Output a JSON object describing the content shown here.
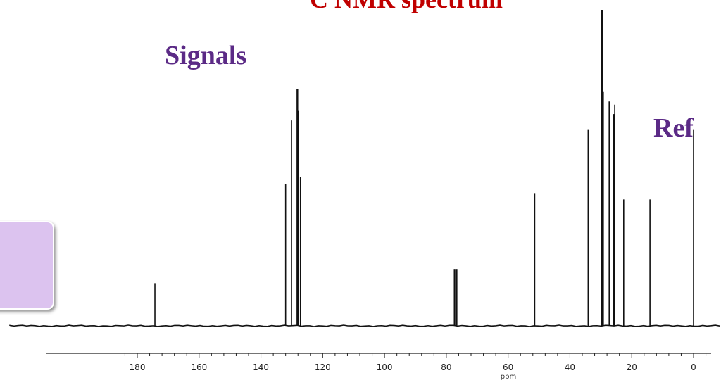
{
  "slide": {
    "title": "C NMR spectrum",
    "annotations": {
      "signals": "Signals",
      "ref": "Ref"
    }
  },
  "colors": {
    "title": "#c00000",
    "annotation": "#5b2a86",
    "box": "#dcc3ef",
    "spectrum": "#111111"
  },
  "chart_data": {
    "type": "line",
    "title": "",
    "xlabel": "ppm",
    "ylabel": "",
    "xlim": [
      185,
      -5
    ],
    "x_reversed": true,
    "x_ticks": [
      180,
      160,
      140,
      120,
      100,
      80,
      60,
      40,
      20,
      0
    ],
    "ylim": [
      0,
      1
    ],
    "grid": false,
    "peaks": [
      {
        "ppm": 174.3,
        "intensity": 0.135
      },
      {
        "ppm": 132.0,
        "intensity": 0.45
      },
      {
        "ppm": 130.1,
        "intensity": 0.65
      },
      {
        "ppm": 128.2,
        "intensity": 0.75
      },
      {
        "ppm": 127.8,
        "intensity": 0.68
      },
      {
        "ppm": 127.2,
        "intensity": 0.47
      },
      {
        "ppm": 77.4,
        "intensity": 0.18
      },
      {
        "ppm": 77.0,
        "intensity": 0.18
      },
      {
        "ppm": 76.6,
        "intensity": 0.18
      },
      {
        "ppm": 51.4,
        "intensity": 0.42
      },
      {
        "ppm": 34.1,
        "intensity": 0.62
      },
      {
        "ppm": 29.6,
        "intensity": 1.0
      },
      {
        "ppm": 29.3,
        "intensity": 0.74
      },
      {
        "ppm": 27.2,
        "intensity": 0.71
      },
      {
        "ppm": 25.8,
        "intensity": 0.67
      },
      {
        "ppm": 25.5,
        "intensity": 0.7
      },
      {
        "ppm": 22.6,
        "intensity": 0.4
      },
      {
        "ppm": 14.1,
        "intensity": 0.4
      },
      {
        "ppm": 0.0,
        "intensity": 0.62
      }
    ]
  }
}
